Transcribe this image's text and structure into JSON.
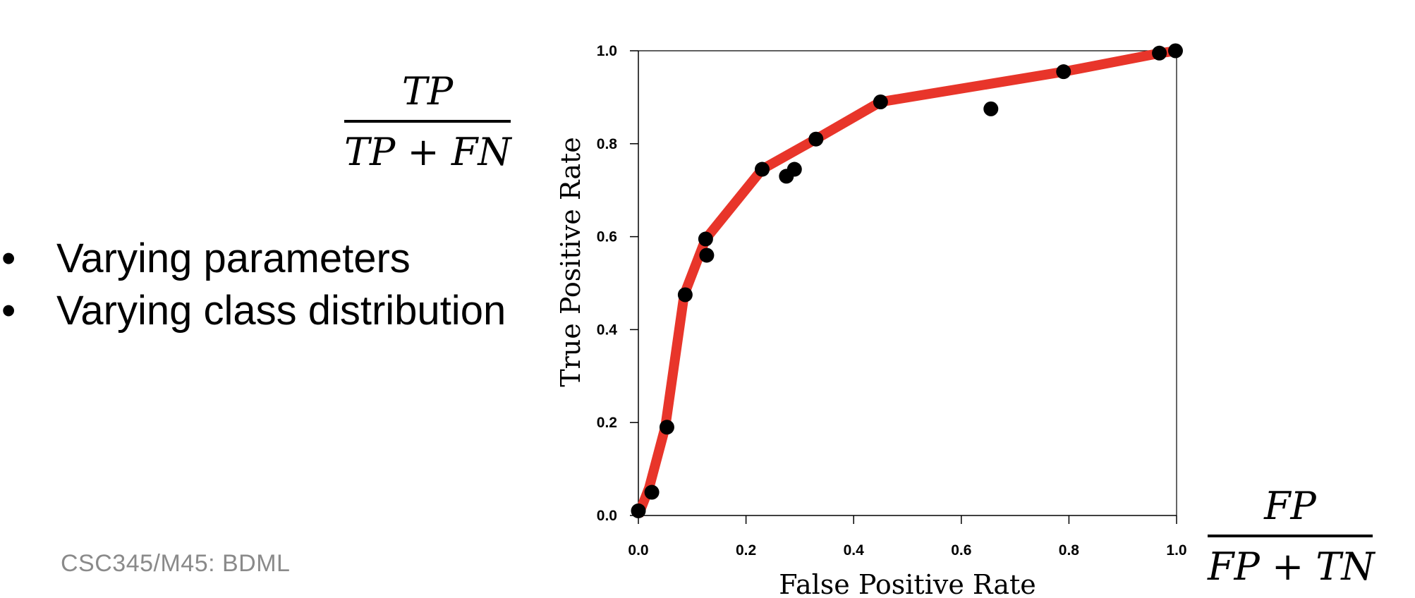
{
  "bullets": [
    "Varying parameters",
    "Varying class distribution"
  ],
  "bullet_symbol": "•",
  "formula_tpr": {
    "numerator": "TP",
    "denominator": "TP + FN"
  },
  "formula_fpr": {
    "numerator": "FP",
    "denominator": "FP + TN"
  },
  "footer": "CSC345/M45: BDML",
  "chart_data": {
    "type": "line",
    "xlabel": "False Positive Rate",
    "ylabel": "True Positive Rate",
    "xlim": [
      0.0,
      1.0
    ],
    "ylim": [
      0.0,
      1.0
    ],
    "xticks": [
      "0.0",
      "0.2",
      "0.4",
      "0.6",
      "0.8",
      "1.0"
    ],
    "yticks": [
      "0.0",
      "0.2",
      "0.4",
      "0.6",
      "0.8",
      "1.0"
    ],
    "curve_color": "#e8352a",
    "point_color": "#000000",
    "grid": false,
    "curve": [
      [
        0.0,
        0.0
      ],
      [
        0.02,
        0.06
      ],
      [
        0.05,
        0.19
      ],
      [
        0.085,
        0.475
      ],
      [
        0.125,
        0.595
      ],
      [
        0.23,
        0.745
      ],
      [
        0.33,
        0.81
      ],
      [
        0.45,
        0.89
      ],
      [
        0.79,
        0.955
      ],
      [
        0.97,
        0.995
      ],
      [
        1.0,
        1.0
      ]
    ],
    "points": [
      [
        0.0,
        0.01
      ],
      [
        0.025,
        0.05
      ],
      [
        0.053,
        0.19
      ],
      [
        0.087,
        0.475
      ],
      [
        0.125,
        0.595
      ],
      [
        0.127,
        0.56
      ],
      [
        0.23,
        0.745
      ],
      [
        0.275,
        0.73
      ],
      [
        0.29,
        0.745
      ],
      [
        0.33,
        0.81
      ],
      [
        0.45,
        0.89
      ],
      [
        0.655,
        0.875
      ],
      [
        0.79,
        0.955
      ],
      [
        0.968,
        0.995
      ],
      [
        0.998,
        1.0
      ]
    ]
  }
}
